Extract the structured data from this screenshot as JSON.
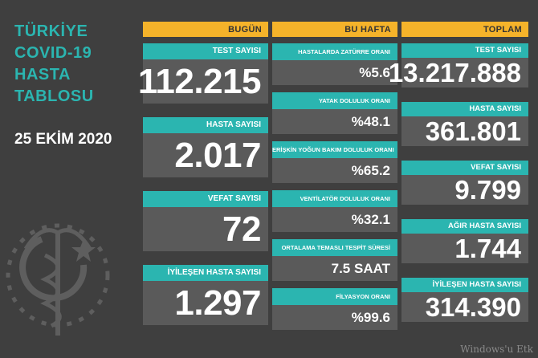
{
  "title": [
    "TÜRKİYE",
    "COVID-19",
    "HASTA",
    "TABLOSU"
  ],
  "date": "25 EKİM 2020",
  "colors": {
    "teal": "#2bb5b0",
    "orange": "#f5b32a",
    "background": "#3f3f3f",
    "value_box": "#5a5a5a"
  },
  "columns": {
    "today": {
      "header": "BUGÜN",
      "items": [
        {
          "label": "TEST SAYISI",
          "value": "112.215"
        },
        {
          "label": "HASTA SAYISI",
          "value": "2.017"
        },
        {
          "label": "VEFAT SAYISI",
          "value": "72"
        },
        {
          "label": "İYİLEŞEN HASTA SAYISI",
          "value": "1.297"
        }
      ]
    },
    "week": {
      "header": "BU HAFTA",
      "items": [
        {
          "label": "HASTALARDA ZATÜRRE ORANI",
          "value": "%5.6"
        },
        {
          "label": "YATAK DOLULUK ORANI",
          "value": "%48.1"
        },
        {
          "label": "ERİŞKİN YOĞUN BAKIM DOLULUK ORANI",
          "value": "%65.2"
        },
        {
          "label": "VENTİLATÖR DOLULUK ORANI",
          "value": "%32.1"
        },
        {
          "label": "ORTALAMA TEMASLI TESPİT SÜRESİ",
          "value": "7.5 SAAT"
        },
        {
          "label": "FİLYASYON ORANI",
          "value": "%99.6"
        }
      ]
    },
    "total": {
      "header": "TOPLAM",
      "items": [
        {
          "label": "TEST SAYISI",
          "value": "13.217.888"
        },
        {
          "label": "HASTA SAYISI",
          "value": "361.801"
        },
        {
          "label": "VEFAT SAYISI",
          "value": "9.799"
        },
        {
          "label": "AĞIR HASTA SAYISI",
          "value": "1.744"
        },
        {
          "label": "İYİLEŞEN HASTA SAYISI",
          "value": "314.390"
        }
      ]
    }
  },
  "watermark": "Windows'u Etk",
  "emblem_icon": "ministry-of-health-emblem-icon"
}
